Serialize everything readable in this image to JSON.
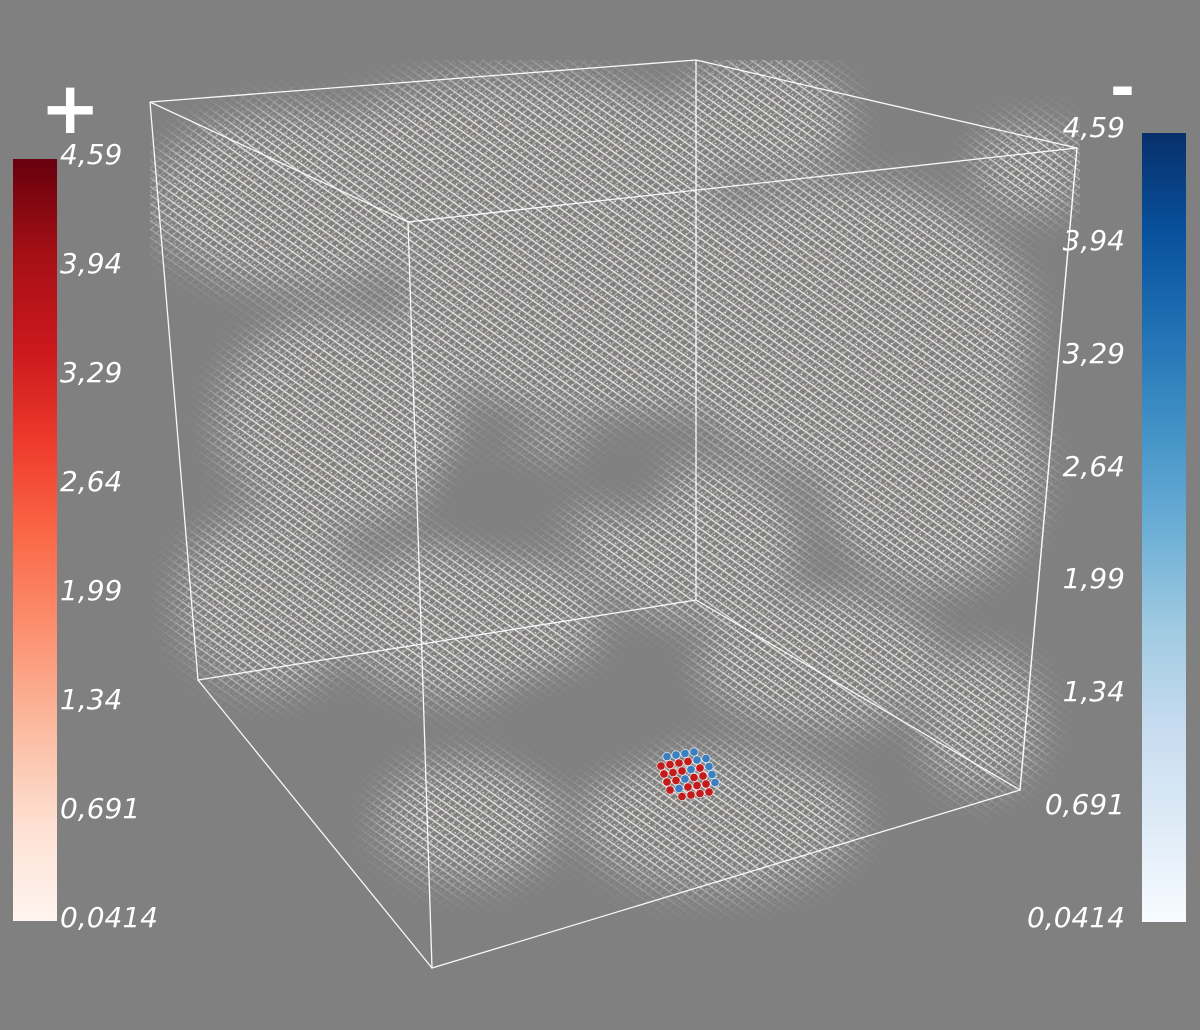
{
  "scene": {
    "background_color": "#808080",
    "box_edge_color": "#ffffff",
    "glyph_color": "#f2ece8",
    "highlight_positive_color": "#c41a1c",
    "highlight_negative_color": "#3a7fc0"
  },
  "legend_positive": {
    "sign": "+",
    "ticks": [
      "4,59",
      "3,94",
      "3,29",
      "2,64",
      "1,99",
      "1,34",
      "0,691",
      "0,0414"
    ],
    "gradient": [
      "#67000d",
      "#a50f15",
      "#cb181d",
      "#ef3b2c",
      "#fb6a4a",
      "#fc9272",
      "#fcbba1",
      "#fee0d2",
      "#fff5f0"
    ]
  },
  "legend_negative": {
    "sign": "-",
    "ticks": [
      "4,59",
      "3,94",
      "3,29",
      "2,64",
      "1,99",
      "1,34",
      "0,691",
      "0,0414"
    ],
    "gradient": [
      "#08306b",
      "#08519c",
      "#2171b5",
      "#4292c6",
      "#6baed6",
      "#9ecae1",
      "#c6dbef",
      "#deebf7",
      "#f7fbff"
    ]
  }
}
